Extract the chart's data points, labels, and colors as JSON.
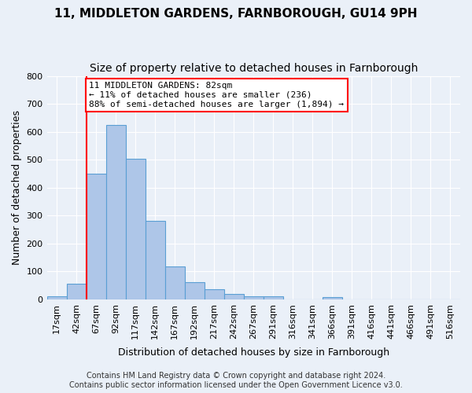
{
  "title_line1": "11, MIDDLETON GARDENS, FARNBOROUGH, GU14 9PH",
  "title_line2": "Size of property relative to detached houses in Farnborough",
  "xlabel": "Distribution of detached houses by size in Farnborough",
  "ylabel": "Number of detached properties",
  "bar_values": [
    12,
    55,
    450,
    625,
    503,
    280,
    117,
    62,
    35,
    20,
    10,
    10,
    0,
    0,
    8,
    0,
    0,
    0,
    0,
    0,
    0
  ],
  "bin_labels": [
    "17sqm",
    "42sqm",
    "67sqm",
    "92sqm",
    "117sqm",
    "142sqm",
    "167sqm",
    "192sqm",
    "217sqm",
    "242sqm",
    "267sqm",
    "291sqm",
    "316sqm",
    "341sqm",
    "366sqm",
    "391sqm",
    "416sqm",
    "441sqm",
    "466sqm",
    "491sqm",
    "516sqm"
  ],
  "bar_color": "#aec6e8",
  "bar_edge_color": "#5a9fd4",
  "vline_x": 2,
  "vline_color": "red",
  "annotation_text": "11 MIDDLETON GARDENS: 82sqm\n← 11% of detached houses are smaller (236)\n88% of semi-detached houses are larger (1,894) →",
  "annotation_box_color": "white",
  "annotation_box_edge_color": "red",
  "ylim": [
    0,
    800
  ],
  "yticks": [
    0,
    100,
    200,
    300,
    400,
    500,
    600,
    700,
    800
  ],
  "background_color": "#eaf0f8",
  "footer_line1": "Contains HM Land Registry data © Crown copyright and database right 2024.",
  "footer_line2": "Contains public sector information licensed under the Open Government Licence v3.0.",
  "title_fontsize": 11,
  "subtitle_fontsize": 10,
  "axis_label_fontsize": 9,
  "tick_fontsize": 8,
  "annotation_fontsize": 8,
  "footer_fontsize": 7
}
